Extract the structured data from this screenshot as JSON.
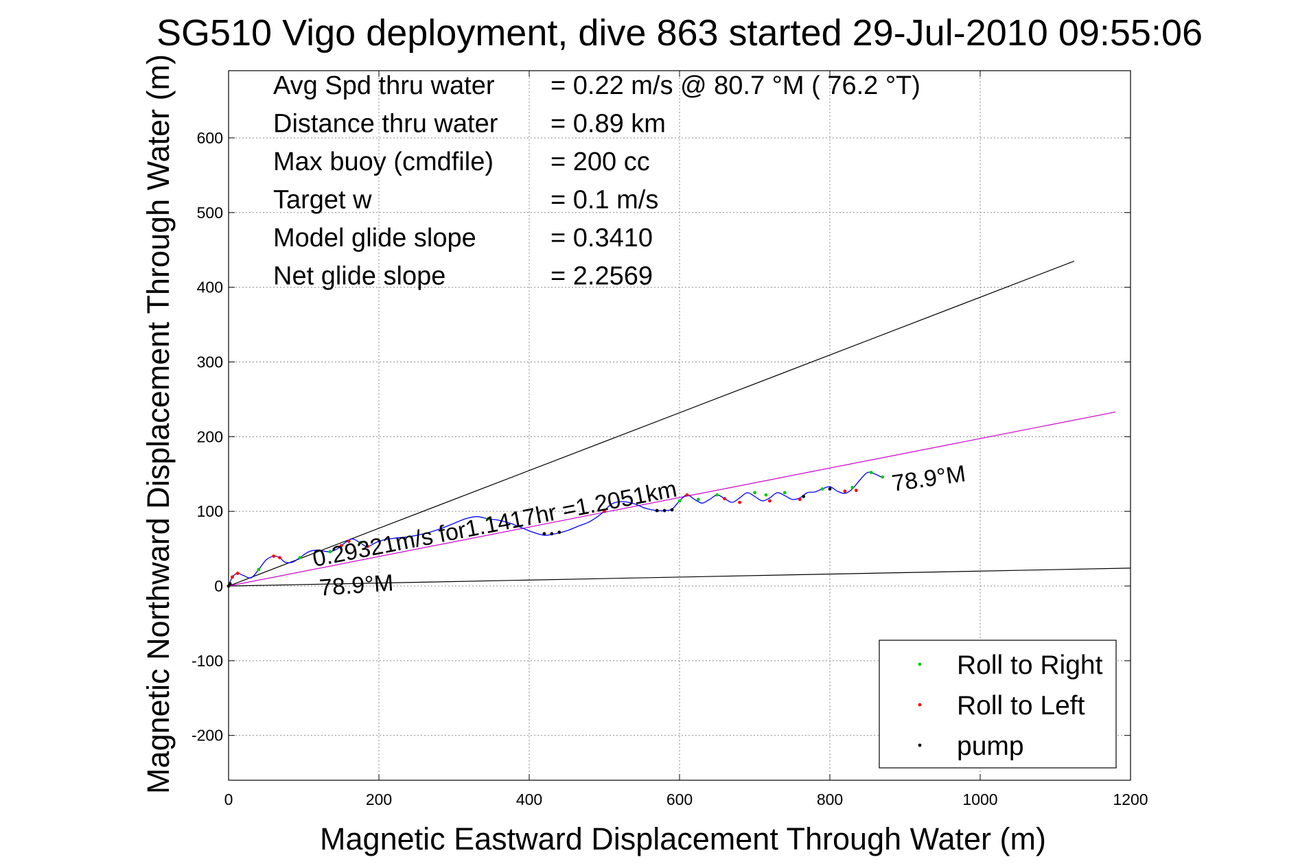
{
  "chart_data": {
    "type": "line",
    "title": "SG510 Vigo deployment, dive 863 started 29-Jul-2010 09:55:06",
    "xlabel": "Magnetic Eastward Displacement Through Water (m)",
    "ylabel": "Magnetic Northward Displacement Through Water (m)",
    "xlim": [
      0,
      1200
    ],
    "ylim": [
      -260,
      690
    ],
    "xticks": [
      0,
      200,
      400,
      600,
      800,
      1000,
      1200
    ],
    "yticks": [
      -200,
      -100,
      0,
      100,
      200,
      300,
      400,
      500,
      600
    ],
    "grid": true,
    "legend_position": "bottom-right",
    "legend": [
      {
        "label": "Roll to Right",
        "color": "#00cc00"
      },
      {
        "label": "Roll to Left",
        "color": "#ff0000"
      },
      {
        "label": "pump",
        "color": "#000000"
      }
    ],
    "info_lines": [
      {
        "label": "Avg Spd thru water",
        "value": "=  0.22 m/s @  80.7 °M ( 76.2 °T)"
      },
      {
        "label": "Distance thru water",
        "value": "=  0.89 km"
      },
      {
        "label": "Max buoy (cmdfile)",
        "value": "= 200 cc"
      },
      {
        "label": "Target w",
        "value": "= 0.1 m/s"
      },
      {
        "label": "Model glide slope",
        "value": "= 0.3410"
      },
      {
        "label": "Net glide slope",
        "value": "= 2.2569"
      }
    ],
    "annotations": {
      "speed_label": "0.29321m/s for1.1417hr =1.2051km",
      "heading_label_start": "78.9°M",
      "heading_label_end": "78.9°M"
    },
    "reference_lines": [
      {
        "name": "upper-bound",
        "color": "#000000",
        "x": [
          0,
          1125
        ],
        "y": [
          0,
          435
        ]
      },
      {
        "name": "lower-bound",
        "color": "#000000",
        "x": [
          0,
          1200
        ],
        "y": [
          0,
          24
        ]
      },
      {
        "name": "track-heading",
        "color": "#cc00cc",
        "x": [
          0,
          1180
        ],
        "y": [
          0,
          233
        ]
      }
    ],
    "series": [
      {
        "name": "track",
        "color": "#0000ff",
        "x": [
          0,
          5,
          12,
          20,
          30,
          40,
          50,
          60,
          68,
          75,
          85,
          95,
          105,
          115,
          125,
          135,
          145,
          155,
          165,
          175,
          185,
          200,
          220,
          240,
          260,
          280,
          300,
          315,
          330,
          345,
          360,
          375,
          390,
          405,
          420,
          435,
          450,
          465,
          480,
          495,
          510,
          525,
          540,
          555,
          570,
          580,
          590,
          600,
          610,
          620,
          630,
          640,
          650,
          660,
          670,
          680,
          690,
          700,
          710,
          720,
          730,
          740,
          750,
          760,
          770,
          780,
          790,
          800,
          810,
          820,
          830,
          840,
          850,
          860,
          870
        ],
        "y": [
          0,
          12,
          17,
          14,
          11,
          22,
          35,
          40,
          38,
          32,
          32,
          38,
          45,
          48,
          47,
          46,
          50,
          58,
          63,
          58,
          53,
          60,
          64,
          66,
          70,
          76,
          84,
          90,
          93,
          90,
          88,
          84,
          78,
          72,
          68,
          70,
          74,
          80,
          86,
          96,
          110,
          113,
          110,
          104,
          101,
          101,
          103,
          114,
          122,
          116,
          111,
          116,
          122,
          117,
          112,
          118,
          125,
          120,
          114,
          118,
          125,
          121,
          116,
          118,
          125,
          126,
          130,
          133,
          127,
          124,
          130,
          142,
          152,
          150,
          145
        ]
      },
      {
        "name": "Roll to Right",
        "color": "#00cc00",
        "x": [
          40,
          95,
          135,
          175,
          345,
          600,
          625,
          650,
          700,
          715,
          740,
          790,
          830,
          855,
          870
        ],
        "y": [
          22,
          38,
          46,
          58,
          90,
          114,
          116,
          122,
          125,
          122,
          125,
          130,
          132,
          152,
          146
        ]
      },
      {
        "name": "Roll to Left",
        "color": "#ff0000",
        "x": [
          5,
          12,
          60,
          68,
          150,
          160,
          185,
          500,
          610,
          660,
          680,
          720,
          760,
          820,
          835
        ],
        "y": [
          12,
          17,
          40,
          38,
          54,
          60,
          53,
          100,
          122,
          117,
          112,
          114,
          116,
          127,
          128
        ]
      },
      {
        "name": "pump",
        "color": "#000000",
        "x": [
          0,
          2,
          420,
          430,
          440,
          570,
          580,
          590,
          765,
          800
        ],
        "y": [
          0,
          3,
          70,
          70,
          72,
          101,
          101,
          102,
          120,
          130
        ]
      }
    ]
  }
}
